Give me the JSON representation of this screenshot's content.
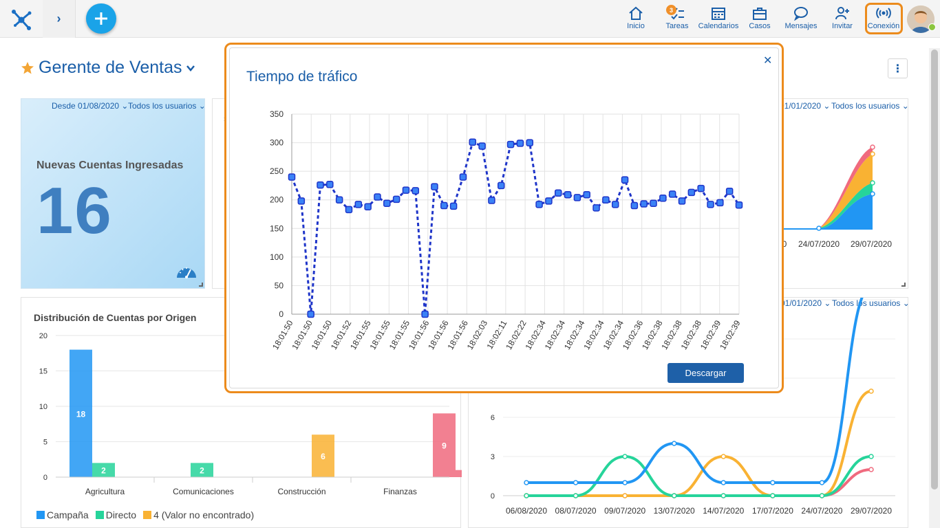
{
  "topbar": {
    "nav": [
      {
        "key": "inicio",
        "label": "Inicio",
        "icon": "home-icon"
      },
      {
        "key": "tareas",
        "label": "Tareas",
        "icon": "tasks-icon",
        "badge": "3"
      },
      {
        "key": "calendarios",
        "label": "Calendarios",
        "icon": "calendar-icon"
      },
      {
        "key": "casos",
        "label": "Casos",
        "icon": "briefcase-icon"
      },
      {
        "key": "mensajes",
        "label": "Mensajes",
        "icon": "chat-icon"
      },
      {
        "key": "invitar",
        "label": "Invitar",
        "icon": "add-user-icon"
      },
      {
        "key": "conexion",
        "label": "Conexión",
        "icon": "signal-icon"
      }
    ]
  },
  "page": {
    "title": "Gerente de Ventas"
  },
  "kpi": {
    "filter_date": "Desde 01/08/2020",
    "filter_users": "Todos los usuarios",
    "label": "Nuevas Cuentas Ingresadas",
    "value": "16"
  },
  "right_top": {
    "filter_date": "01/01/2020",
    "filter_users": "Todos los usuarios",
    "chart_data": {
      "type": "area",
      "x": [
        "20",
        "24/07/2020",
        "29/07/2020"
      ]
    }
  },
  "right_bottom_filter": {
    "filter_date": "01/01/2020",
    "filter_users": "Todos los usuarios"
  },
  "distribution": {
    "title": "Distribución de Cuentas por Origen",
    "chart_data": {
      "type": "bar",
      "categories": [
        "Agricultura",
        "Comunicaciones",
        "Construcción",
        "Finanzas"
      ],
      "ylim": [
        0,
        20
      ],
      "yticks": [
        0,
        5,
        10,
        15,
        20
      ],
      "series": [
        {
          "name": "Campaña",
          "color": "#2196f3",
          "values": [
            18,
            0,
            0,
            0
          ]
        },
        {
          "name": "Directo",
          "color": "#26d49a",
          "values": [
            2,
            2,
            0,
            0
          ]
        },
        {
          "name": "4 (Valor no encontrado)",
          "color": "#f9b233",
          "values": [
            0,
            0,
            6,
            0
          ]
        },
        {
          "name": "",
          "color": "#f06a7e",
          "values": [
            0,
            0,
            0,
            9
          ]
        },
        {
          "name": "",
          "color": "#f06a7e",
          "values": [
            0,
            0,
            0,
            1
          ]
        },
        {
          "name": "",
          "color": "#f06a7e",
          "values": [
            0,
            0,
            0,
            1
          ]
        }
      ]
    }
  },
  "trend": {
    "chart_data": {
      "type": "line",
      "categories": [
        "06/08/2020",
        "08/07/2020",
        "09/07/2020",
        "13/07/2020",
        "14/07/2020",
        "17/07/2020",
        "24/07/2020",
        "29/07/2020"
      ],
      "yticks": [
        0,
        3,
        6
      ],
      "series": [
        {
          "color": "#2196f3",
          "values": [
            1,
            1,
            1,
            4,
            1,
            1,
            1,
            16
          ]
        },
        {
          "color": "#26d49a",
          "values": [
            0,
            0,
            3,
            0,
            0,
            0,
            0,
            3
          ]
        },
        {
          "color": "#f9b233",
          "values": [
            0,
            0,
            0,
            0,
            3,
            0,
            0,
            8
          ]
        },
        {
          "color": "#f06a7e",
          "values": [
            0,
            0,
            0,
            0,
            0,
            0,
            0,
            2
          ]
        }
      ]
    }
  },
  "modal": {
    "title": "Tiempo de tráfico",
    "close_icon": "close-icon",
    "download_label": "Descargar",
    "chart_data": {
      "type": "line",
      "ylim": [
        0,
        350
      ],
      "yticks": [
        0,
        50,
        100,
        150,
        200,
        250,
        300,
        350
      ],
      "x_tick_labels": [
        "18:01:50",
        "18:01:50",
        "18:01:50",
        "18:01:52",
        "18:01:55",
        "18:01:55",
        "18:01:55",
        "18:01:56",
        "18:01:56",
        "18:01:56",
        "18:02:03",
        "18:02:11",
        "18:02:22",
        "18:02:34",
        "18:02:34",
        "18:02:34",
        "18:02:34",
        "18:02:34",
        "18:02:36",
        "18:02:38",
        "18:02:38",
        "18:02:38",
        "18:02:39",
        "18:02:39"
      ],
      "values": [
        240,
        198,
        0,
        226,
        227,
        200,
        183,
        192,
        188,
        205,
        194,
        201,
        217,
        216,
        0,
        223,
        190,
        189,
        240,
        301,
        294,
        199,
        225,
        297,
        299,
        300,
        192,
        198,
        212,
        209,
        204,
        209,
        186,
        200,
        192,
        235,
        190,
        193,
        194,
        203,
        210,
        198,
        213,
        220,
        192,
        195,
        215,
        191
      ],
      "color": "#1f35c9"
    }
  }
}
